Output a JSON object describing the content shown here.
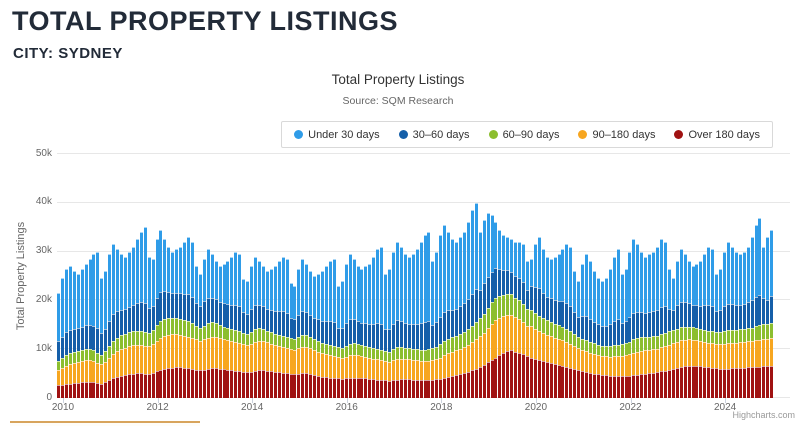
{
  "page": {
    "title": "TOTAL PROPERTY LISTINGS",
    "subtitle": "CITY: SYDNEY"
  },
  "chart": {
    "title": "Total Property Listings",
    "subtitle": "Source: SQM Research",
    "y_axis_title": "Total Property Listings",
    "credit": "Highcharts.com"
  },
  "chart_data": {
    "type": "bar",
    "stacked": true,
    "title": "Total Property Listings",
    "subtitle": "Source: SQM Research",
    "xlabel": "",
    "ylabel": "Total Property Listings",
    "x_start": "2010-01",
    "x_end": "2025-02",
    "x_unit": "month",
    "values_unit": "thousands of listings",
    "ylim": [
      0,
      50
    ],
    "grid": "horizontal",
    "legend_position": "top-right",
    "yticks": [
      "0",
      "10k",
      "20k",
      "30k",
      "40k",
      "50k"
    ],
    "ytick_values": [
      0,
      10,
      20,
      30,
      40,
      50
    ],
    "xticks": [
      {
        "label": "2010",
        "month": 0
      },
      {
        "label": "2012",
        "month": 24
      },
      {
        "label": "2014",
        "month": 48
      },
      {
        "label": "2016",
        "month": 72
      },
      {
        "label": "2018",
        "month": 96
      },
      {
        "label": "2020",
        "month": 120
      },
      {
        "label": "2022",
        "month": 144
      },
      {
        "label": "2024",
        "month": 168
      }
    ],
    "stack_order": "last series listed is bottom of stack",
    "series": [
      {
        "name": "Under 30 days",
        "color": "#2f9ce8",
        "values": [
          9.9,
          11.9,
          13.0,
          13.0,
          11.8,
          11.2,
          11.9,
          12.6,
          13.5,
          14.7,
          15.7,
          11.2,
          11.8,
          13.7,
          14.3,
          12.7,
          11.4,
          10.7,
          11.3,
          11.9,
          13.1,
          14.4,
          15.6,
          10.5,
          9.6,
          12.0,
          12.7,
          10.6,
          9.2,
          8.4,
          8.9,
          9.4,
          10.6,
          11.7,
          11.2,
          7.5,
          6.7,
          8.7,
          9.9,
          8.9,
          7.8,
          7.3,
          8.1,
          8.7,
          9.9,
          10.9,
          10.7,
          6.8,
          6.7,
          8.7,
          9.9,
          8.9,
          8.2,
          7.7,
          8.4,
          9.1,
          10.2,
          11.2,
          11.0,
          7.1,
          6.9,
          9.4,
          10.7,
          9.9,
          8.9,
          8.6,
          9.4,
          10.2,
          11.3,
          12.3,
          12.9,
          8.6,
          9.6,
          12.1,
          13.4,
          12.4,
          11.3,
          11.1,
          11.7,
          12.3,
          13.8,
          15.2,
          15.8,
          11.4,
          12.4,
          14.9,
          16.1,
          15.2,
          14.1,
          13.8,
          14.4,
          15.3,
          16.7,
          17.9,
          18.2,
          13.0,
          14.4,
          16.8,
          17.8,
          16.0,
          14.4,
          13.7,
          14.2,
          14.6,
          15.7,
          17.2,
          17.6,
          11.8,
          13.0,
          13.1,
          11.6,
          9.4,
          8.0,
          7.2,
          6.8,
          6.6,
          6.9,
          7.4,
          7.8,
          5.8,
          5.6,
          8.8,
          10.5,
          8.9,
          8.2,
          8.1,
          8.9,
          9.6,
          10.7,
          12.0,
          12.1,
          8.4,
          7.3,
          10.7,
          12.7,
          11.8,
          10.4,
          9.4,
          9.2,
          9.7,
          11.4,
          13.3,
          14.4,
          10.2,
          10.7,
          13.4,
          15.0,
          13.9,
          12.4,
          11.5,
          11.9,
          12.2,
          12.9,
          13.8,
          13.2,
          8.3,
          6.4,
          9.0,
          10.8,
          9.9,
          8.6,
          7.9,
          8.5,
          9.1,
          10.5,
          11.9,
          11.6,
          7.6,
          8.5,
          11.2,
          12.7,
          11.7,
          10.9,
          10.4,
          10.8,
          11.3,
          13.0,
          14.8,
          15.8,
          10.6,
          13.0,
          13.6
        ]
      },
      {
        "name": "30–60 days",
        "color": "#155fa9",
        "values": [
          4.0,
          4.4,
          4.7,
          4.8,
          4.7,
          4.6,
          4.7,
          4.8,
          4.9,
          5.0,
          5.0,
          4.4,
          4.6,
          5.1,
          5.5,
          5.4,
          5.2,
          5.1,
          5.2,
          5.4,
          5.6,
          5.8,
          5.9,
          5.2,
          5.0,
          5.6,
          6.0,
          5.7,
          5.4,
          5.2,
          5.3,
          5.4,
          5.5,
          5.6,
          5.4,
          4.7,
          4.5,
          5.0,
          5.3,
          5.1,
          4.9,
          4.7,
          4.8,
          4.9,
          5.0,
          5.2,
          5.1,
          4.3,
          4.2,
          4.7,
          5.0,
          4.8,
          4.7,
          4.5,
          4.6,
          4.7,
          4.8,
          5.0,
          4.9,
          4.1,
          4.1,
          4.6,
          4.9,
          4.7,
          4.5,
          4.3,
          4.4,
          4.5,
          4.6,
          4.8,
          4.9,
          4.0,
          4.2,
          4.7,
          5.0,
          4.9,
          4.7,
          4.6,
          4.7,
          4.8,
          5.0,
          5.2,
          5.3,
          4.4,
          4.6,
          5.1,
          5.5,
          5.3,
          5.1,
          5.0,
          5.1,
          5.2,
          5.5,
          5.7,
          5.8,
          4.8,
          5.1,
          5.7,
          6.0,
          5.8,
          5.6,
          5.5,
          5.6,
          5.8,
          6.1,
          6.5,
          6.8,
          5.8,
          6.2,
          6.4,
          6.3,
          6.1,
          5.6,
          5.1,
          4.8,
          4.6,
          4.6,
          4.6,
          4.5,
          3.9,
          4.8,
          5.3,
          5.6,
          5.2,
          4.9,
          4.8,
          4.9,
          5.0,
          5.2,
          5.3,
          5.2,
          4.4,
          4.1,
          4.7,
          5.0,
          4.8,
          4.4,
          4.2,
          4.1,
          4.2,
          4.5,
          4.9,
          5.2,
          4.3,
          4.5,
          5.1,
          5.5,
          5.3,
          5.1,
          4.9,
          5.0,
          5.1,
          5.3,
          5.5,
          5.4,
          4.5,
          4.2,
          4.8,
          5.2,
          5.0,
          4.8,
          4.6,
          4.7,
          4.8,
          5.0,
          5.3,
          5.2,
          4.3,
          4.5,
          5.1,
          5.4,
          5.3,
          5.1,
          5.0,
          5.1,
          5.3,
          5.6,
          6.0,
          6.3,
          5.3,
          4.9,
          5.5
        ]
      },
      {
        "name": "60–90 days",
        "color": "#8cbe2f",
        "values": [
          1.8,
          2.0,
          2.2,
          2.3,
          2.3,
          2.3,
          2.3,
          2.3,
          2.3,
          2.2,
          2.1,
          2.0,
          2.2,
          2.5,
          2.7,
          2.8,
          2.9,
          2.9,
          2.9,
          2.9,
          2.9,
          2.9,
          2.8,
          2.7,
          2.9,
          3.2,
          3.4,
          3.4,
          3.4,
          3.3,
          3.2,
          3.2,
          3.1,
          3.1,
          3.0,
          2.8,
          2.6,
          2.8,
          2.9,
          2.9,
          2.8,
          2.7,
          2.6,
          2.6,
          2.5,
          2.5,
          2.5,
          2.4,
          2.3,
          2.5,
          2.6,
          2.6,
          2.5,
          2.4,
          2.4,
          2.3,
          2.3,
          2.3,
          2.3,
          2.2,
          2.1,
          2.3,
          2.4,
          2.4,
          2.3,
          2.2,
          2.2,
          2.1,
          2.1,
          2.1,
          2.1,
          2.0,
          2.0,
          2.2,
          2.3,
          2.3,
          2.2,
          2.2,
          2.2,
          2.2,
          2.2,
          2.2,
          2.2,
          2.1,
          2.1,
          2.3,
          2.4,
          2.4,
          2.3,
          2.3,
          2.3,
          2.3,
          2.3,
          2.4,
          2.4,
          2.4,
          2.5,
          2.7,
          2.9,
          3.0,
          3.0,
          3.0,
          3.1,
          3.2,
          3.3,
          3.4,
          3.6,
          3.7,
          3.9,
          4.2,
          4.4,
          4.5,
          4.5,
          4.4,
          4.3,
          4.2,
          4.0,
          3.9,
          3.7,
          3.5,
          3.3,
          3.2,
          3.1,
          3.0,
          2.9,
          2.9,
          2.8,
          2.8,
          2.8,
          2.7,
          2.6,
          2.5,
          2.3,
          2.2,
          2.2,
          2.1,
          2.1,
          2.0,
          2.0,
          2.0,
          2.1,
          2.2,
          2.3,
          2.3,
          2.4,
          2.5,
          2.7,
          2.8,
          2.8,
          2.8,
          2.7,
          2.7,
          2.7,
          2.8,
          2.8,
          2.8,
          2.7,
          2.7,
          2.7,
          2.7,
          2.6,
          2.6,
          2.5,
          2.5,
          2.5,
          2.5,
          2.5,
          2.5,
          2.5,
          2.6,
          2.7,
          2.7,
          2.7,
          2.7,
          2.7,
          2.8,
          2.8,
          2.9,
          3.0,
          3.0,
          3.0,
          3.1
        ]
      },
      {
        "name": "90–180 days",
        "color": "#f7a620",
        "values": [
          3.2,
          3.5,
          3.8,
          4.0,
          4.2,
          4.3,
          4.4,
          4.5,
          4.5,
          4.4,
          4.2,
          4.0,
          4.2,
          4.6,
          5.0,
          5.3,
          5.5,
          5.6,
          5.7,
          5.8,
          5.8,
          5.8,
          5.7,
          5.6,
          5.8,
          6.2,
          6.6,
          6.8,
          6.9,
          6.9,
          6.8,
          6.7,
          6.6,
          6.5,
          6.4,
          6.2,
          6.0,
          6.2,
          6.4,
          6.5,
          6.4,
          6.3,
          6.1,
          6.0,
          5.9,
          5.8,
          5.7,
          5.6,
          5.5,
          5.7,
          5.9,
          6.0,
          5.9,
          5.8,
          5.6,
          5.5,
          5.4,
          5.3,
          5.2,
          5.1,
          5.0,
          5.2,
          5.4,
          5.4,
          5.3,
          5.1,
          4.9,
          4.8,
          4.7,
          4.6,
          4.5,
          4.4,
          4.3,
          4.5,
          4.7,
          4.7,
          4.6,
          4.5,
          4.4,
          4.3,
          4.2,
          4.2,
          4.1,
          4.0,
          3.9,
          4.1,
          4.3,
          4.3,
          4.2,
          4.1,
          4.0,
          4.0,
          3.9,
          3.9,
          4.0,
          4.1,
          4.2,
          4.4,
          4.7,
          4.9,
          5.0,
          5.1,
          5.2,
          5.3,
          5.5,
          5.7,
          6.0,
          6.3,
          6.6,
          7.0,
          7.4,
          7.7,
          7.6,
          7.5,
          7.4,
          7.2,
          7.0,
          6.8,
          6.5,
          6.2,
          6.6,
          6.3,
          6.1,
          5.9,
          5.7,
          5.6,
          5.5,
          5.4,
          5.3,
          5.2,
          5.0,
          4.8,
          4.6,
          4.4,
          4.3,
          4.2,
          4.1,
          4.0,
          3.9,
          3.9,
          3.9,
          4.0,
          4.1,
          4.2,
          4.3,
          4.4,
          4.6,
          4.7,
          4.8,
          4.8,
          4.8,
          4.8,
          4.8,
          4.9,
          5.0,
          5.1,
          5.2,
          5.3,
          5.4,
          5.4,
          5.4,
          5.3,
          5.2,
          5.1,
          5.1,
          5.0,
          5.0,
          5.0,
          5.0,
          5.1,
          5.2,
          5.2,
          5.2,
          5.2,
          5.2,
          5.3,
          5.3,
          5.4,
          5.5,
          5.6,
          5.6,
          5.7
        ]
      },
      {
        "name": "Over 180 days",
        "color": "#a01212",
        "values": [
          2.6,
          2.7,
          2.8,
          2.9,
          3.0,
          3.1,
          3.2,
          3.3,
          3.3,
          3.2,
          3.0,
          2.9,
          3.2,
          3.6,
          4.0,
          4.3,
          4.5,
          4.7,
          4.9,
          5.0,
          5.1,
          5.1,
          5.0,
          5.0,
          5.2,
          5.5,
          5.8,
          6.0,
          6.1,
          6.2,
          6.3,
          6.3,
          6.2,
          6.1,
          6.0,
          5.8,
          5.7,
          5.8,
          6.0,
          6.1,
          6.1,
          6.0,
          5.9,
          5.8,
          5.7,
          5.6,
          5.5,
          5.4,
          5.3,
          5.4,
          5.6,
          5.7,
          5.7,
          5.6,
          5.5,
          5.4,
          5.3,
          5.2,
          5.1,
          5.0,
          4.9,
          5.0,
          5.1,
          5.1,
          5.0,
          4.8,
          4.6,
          4.4,
          4.3,
          4.2,
          4.1,
          4.0,
          3.9,
          4.0,
          4.1,
          4.2,
          4.2,
          4.1,
          4.0,
          3.9,
          3.8,
          3.7,
          3.6,
          3.6,
          3.5,
          3.6,
          3.7,
          3.8,
          3.8,
          3.8,
          3.7,
          3.7,
          3.6,
          3.6,
          3.6,
          3.7,
          3.8,
          3.9,
          4.1,
          4.3,
          4.5,
          4.7,
          4.9,
          5.1,
          5.4,
          5.7,
          6.0,
          6.4,
          6.8,
          7.3,
          7.8,
          8.3,
          8.8,
          9.3,
          9.7,
          9.9,
          9.5,
          9.3,
          9.0,
          8.6,
          8.2,
          7.9,
          7.7,
          7.5,
          7.3,
          7.1,
          6.9,
          6.7,
          6.5,
          6.3,
          6.1,
          5.9,
          5.7,
          5.5,
          5.3,
          5.1,
          5.0,
          4.9,
          4.8,
          4.7,
          4.6,
          4.6,
          4.5,
          4.5,
          4.6,
          4.6,
          4.7,
          4.8,
          4.9,
          5.0,
          5.1,
          5.2,
          5.3,
          5.5,
          5.6,
          5.8,
          6.0,
          6.2,
          6.4,
          6.5,
          6.6,
          6.6,
          6.6,
          6.5,
          6.4,
          6.3,
          6.2,
          6.1,
          6.0,
          6.0,
          6.0,
          6.1,
          6.1,
          6.2,
          6.2,
          6.3,
          6.3,
          6.4,
          6.4,
          6.5,
          6.5,
          6.6
        ]
      }
    ]
  }
}
